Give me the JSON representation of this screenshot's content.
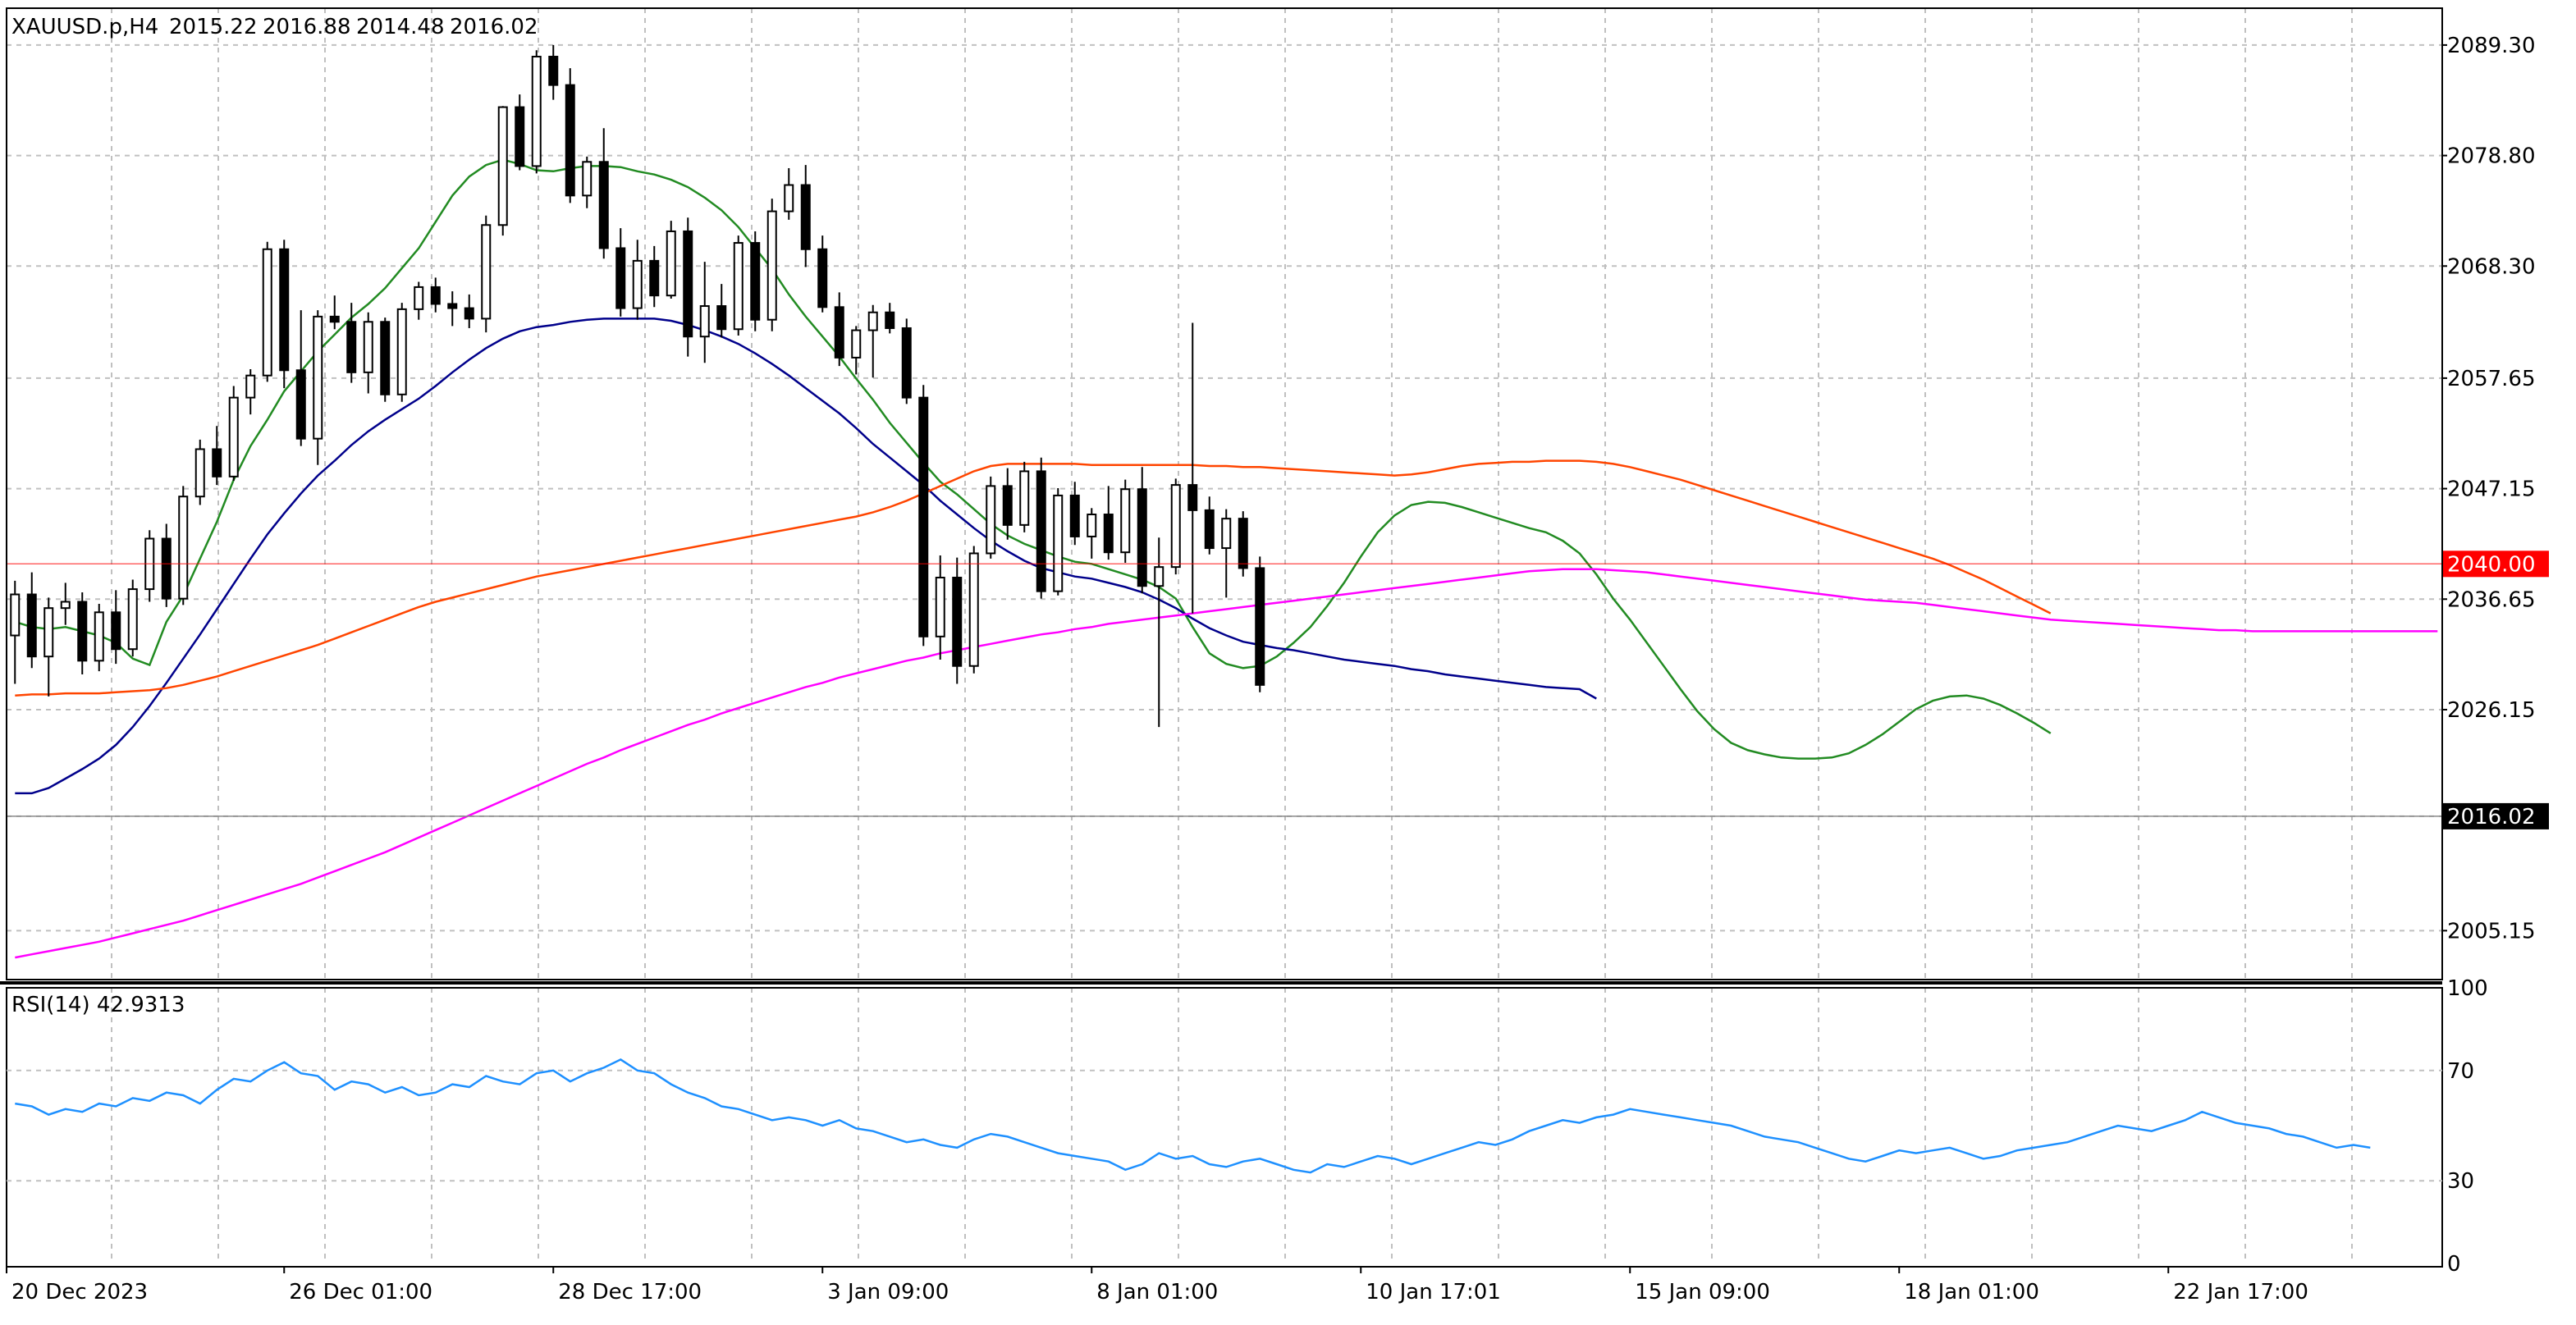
{
  "chart_data": {
    "type": "candlestick",
    "title": "XAUUSD.p,H4",
    "ohlc_header": {
      "open": "2015.22",
      "high": "2016.88",
      "low": "2014.48",
      "close": "2016.02"
    },
    "price_axis": {
      "ticks": [
        "2089.30",
        "2078.80",
        "2068.30",
        "2057.65",
        "2047.15",
        "2036.65",
        "2026.15",
        "2016.02",
        "2005.15"
      ],
      "ylim": [
        2000.5,
        2092.8
      ]
    },
    "current_price": {
      "label": "2016.02",
      "value": 2016.02,
      "color": "#000000"
    },
    "level_line": {
      "label": "2040.00",
      "value": 2040.0,
      "color": "#ff0000"
    },
    "time_axis": {
      "labels": [
        "20 Dec 2023",
        "26 Dec 01:00",
        "28 Dec 17:00",
        "3 Jan 09:00",
        "8 Jan 01:00",
        "10 Jan 17:01",
        "15 Jan 09:00",
        "18 Jan 01:00",
        "22 Jan 17:00"
      ],
      "label_bar_index": [
        0,
        16,
        32,
        48,
        64,
        80,
        96,
        112,
        128
      ]
    },
    "colors": {
      "bull": "#ffffff",
      "bear": "#000000",
      "grid": "#c0c0c0",
      "ma_fast": "#228b22",
      "ma_mid": "#00008b",
      "ma_slow": "#ff4500",
      "ma_long": "#ff00ff",
      "rsi": "#1e90ff",
      "level": "#ff0000"
    },
    "series": [
      {
        "values": [
          2034.5,
          2034.0,
          2033.8,
          2034.0,
          2033.6,
          2033.2,
          2032.5,
          2031.0,
          2030.4,
          2034.5,
          2037.0,
          2040.5,
          2044.0,
          2048.0,
          2051.2,
          2053.7,
          2056.4,
          2058.3,
          2060.2,
          2061.8,
          2063.4,
          2064.7,
          2066.2,
          2068.1,
          2070.0,
          2072.5,
          2075.0,
          2076.8,
          2077.9,
          2078.4,
          2078.0,
          2077.4,
          2077.3,
          2077.6,
          2077.8,
          2077.8,
          2077.7,
          2077.3,
          2077.0,
          2076.5,
          2075.8,
          2074.8,
          2073.6,
          2072.0,
          2070.0,
          2068.0,
          2065.6,
          2063.5,
          2061.6,
          2059.7,
          2057.6,
          2055.6,
          2053.4,
          2051.5,
          2049.6,
          2047.8,
          2046.6,
          2045.2,
          2043.8,
          2042.7,
          2041.9,
          2041.3,
          2040.7,
          2040.2,
          2040.0,
          2039.5,
          2039.0,
          2038.5,
          2037.8,
          2036.7,
          2034.0,
          2031.5,
          2030.5,
          2030.1,
          2030.3,
          2031.2,
          2032.5,
          2034.0,
          2036.0,
          2038.2,
          2040.7,
          2043.0,
          2044.6,
          2045.6,
          2045.9,
          2045.8,
          2045.4,
          2044.9,
          2044.4,
          2043.9,
          2043.4,
          2043.0,
          2042.2,
          2041.0,
          2039.0,
          2036.7,
          2034.7,
          2032.5,
          2030.3,
          2028.1,
          2026.0,
          2024.3,
          2023.0,
          2022.3,
          2021.9,
          2021.6,
          2021.5,
          2021.5,
          2021.6,
          2022.0,
          2022.8,
          2023.8,
          2025.0,
          2026.2,
          2027.0,
          2027.4,
          2027.5,
          2027.2,
          2026.6,
          2025.8,
          2024.9,
          2023.9
        ]
      },
      {
        "values": [
          2018.2,
          2018.2,
          2018.7,
          2019.6,
          2020.5,
          2021.5,
          2022.8,
          2024.5,
          2026.5,
          2028.7,
          2031.0,
          2033.3,
          2035.7,
          2038.1,
          2040.5,
          2042.8,
          2044.8,
          2046.7,
          2048.4,
          2049.8,
          2051.3,
          2052.6,
          2053.7,
          2054.7,
          2055.7,
          2056.9,
          2058.2,
          2059.4,
          2060.5,
          2061.4,
          2062.1,
          2062.5,
          2062.7,
          2063.0,
          2063.2,
          2063.3,
          2063.3,
          2063.3,
          2063.3,
          2063.1,
          2062.7,
          2062.2,
          2061.6,
          2060.9,
          2060.0,
          2059.0,
          2057.9,
          2056.7,
          2055.5,
          2054.3,
          2052.9,
          2051.4,
          2050.1,
          2048.8,
          2047.5,
          2046.0,
          2044.7,
          2043.4,
          2042.2,
          2041.2,
          2040.3,
          2039.6,
          2039.2,
          2038.8,
          2038.6,
          2038.2,
          2037.8,
          2037.3,
          2036.6,
          2035.8,
          2034.8,
          2033.9,
          2033.2,
          2032.6,
          2032.3,
          2032.0,
          2031.8,
          2031.5,
          2031.2,
          2030.9,
          2030.7,
          2030.5,
          2030.3,
          2030.0,
          2029.8,
          2029.5,
          2029.3,
          2029.1,
          2028.9,
          2028.7,
          2028.5,
          2028.3,
          2028.2,
          2028.1,
          2027.2
        ]
      },
      {
        "values": [
          2027.5,
          2027.6,
          2027.6,
          2027.7,
          2027.7,
          2027.7,
          2027.8,
          2027.9,
          2028.0,
          2028.2,
          2028.5,
          2028.9,
          2029.3,
          2029.8,
          2030.3,
          2030.8,
          2031.3,
          2031.8,
          2032.3,
          2032.9,
          2033.5,
          2034.1,
          2034.7,
          2035.3,
          2035.9,
          2036.4,
          2036.8,
          2037.2,
          2037.6,
          2038.0,
          2038.4,
          2038.8,
          2039.1,
          2039.4,
          2039.7,
          2040.0,
          2040.3,
          2040.6,
          2040.9,
          2041.2,
          2041.5,
          2041.8,
          2042.1,
          2042.4,
          2042.7,
          2043.0,
          2043.3,
          2043.6,
          2043.9,
          2044.2,
          2044.5,
          2044.9,
          2045.4,
          2046.0,
          2046.7,
          2047.4,
          2048.1,
          2048.8,
          2049.3,
          2049.5,
          2049.5,
          2049.5,
          2049.5,
          2049.5,
          2049.4,
          2049.4,
          2049.4,
          2049.4,
          2049.4,
          2049.4,
          2049.4,
          2049.3,
          2049.3,
          2049.2,
          2049.2,
          2049.1,
          2049.0,
          2048.9,
          2048.8,
          2048.7,
          2048.6,
          2048.5,
          2048.4,
          2048.5,
          2048.7,
          2049.0,
          2049.3,
          2049.5,
          2049.6,
          2049.7,
          2049.7,
          2049.8,
          2049.8,
          2049.8,
          2049.7,
          2049.5,
          2049.2,
          2048.8,
          2048.4,
          2048.0,
          2047.5,
          2047.0,
          2046.5,
          2046.0,
          2045.5,
          2045.0,
          2044.5,
          2044.0,
          2043.5,
          2043.0,
          2042.5,
          2042.0,
          2041.5,
          2041.0,
          2040.5,
          2039.9,
          2039.2,
          2038.5,
          2037.7,
          2036.9,
          2036.1,
          2035.3
        ]
      },
      {
        "values": [
          2002.6,
          2002.9,
          2003.2,
          2003.5,
          2003.8,
          2004.1,
          2004.5,
          2004.9,
          2005.3,
          2005.7,
          2006.1,
          2006.6,
          2007.1,
          2007.6,
          2008.1,
          2008.6,
          2009.1,
          2009.6,
          2010.2,
          2010.8,
          2011.4,
          2012.0,
          2012.6,
          2013.3,
          2014.0,
          2014.7,
          2015.4,
          2016.1,
          2016.8,
          2017.5,
          2018.2,
          2018.9,
          2019.6,
          2020.3,
          2021.0,
          2021.6,
          2022.3,
          2022.9,
          2023.5,
          2024.1,
          2024.7,
          2025.2,
          2025.8,
          2026.3,
          2026.8,
          2027.3,
          2027.8,
          2028.3,
          2028.7,
          2029.2,
          2029.6,
          2030.0,
          2030.4,
          2030.8,
          2031.1,
          2031.5,
          2031.8,
          2032.1,
          2032.4,
          2032.7,
          2033.0,
          2033.3,
          2033.5,
          2033.8,
          2034.0,
          2034.3,
          2034.5,
          2034.7,
          2034.9,
          2035.1,
          2035.3,
          2035.5,
          2035.7,
          2035.9,
          2036.1,
          2036.3,
          2036.5,
          2036.7,
          2036.9,
          2037.1,
          2037.3,
          2037.5,
          2037.7,
          2037.9,
          2038.1,
          2038.3,
          2038.5,
          2038.7,
          2038.9,
          2039.1,
          2039.3,
          2039.4,
          2039.5,
          2039.5,
          2039.5,
          2039.4,
          2039.3,
          2039.2,
          2039.0,
          2038.8,
          2038.6,
          2038.4,
          2038.2,
          2038.0,
          2037.8,
          2037.6,
          2037.4,
          2037.2,
          2037.0,
          2036.8,
          2036.6,
          2036.5,
          2036.4,
          2036.3,
          2036.1,
          2035.9,
          2035.7,
          2035.5,
          2035.3,
          2035.1,
          2034.9,
          2034.7,
          2034.6,
          2034.5,
          2034.4,
          2034.3,
          2034.2,
          2034.1,
          2034.0,
          2033.9,
          2033.8,
          2033.7,
          2033.7,
          2033.6,
          2033.6,
          2033.6,
          2033.6,
          2033.6,
          2033.6,
          2033.6,
          2033.6,
          2033.6,
          2033.6,
          2033.6,
          2033.6
        ]
      },
      {
        "values": [
          58,
          57,
          54,
          56,
          55,
          58,
          57,
          60,
          59,
          62,
          61,
          58,
          63,
          67,
          66,
          70,
          73,
          69,
          68,
          63,
          66,
          65,
          62,
          64,
          61,
          62,
          65,
          64,
          68,
          66,
          65,
          69,
          70,
          66,
          69,
          71,
          74,
          70,
          69,
          65,
          62,
          60,
          57,
          56,
          54,
          52,
          53,
          52,
          50,
          52,
          49,
          48,
          46,
          44,
          45,
          43,
          42,
          45,
          47,
          46,
          44,
          42,
          40,
          39,
          38,
          37,
          34,
          36,
          40,
          38,
          39,
          36,
          35,
          37,
          38,
          36,
          34,
          33,
          36,
          35,
          37,
          39,
          38,
          36,
          38,
          40,
          42,
          44,
          43,
          45,
          48,
          50,
          52,
          51,
          53,
          54,
          56,
          55,
          54,
          53,
          52,
          51,
          50,
          48,
          46,
          45,
          44,
          42,
          40,
          38,
          37,
          39,
          41,
          40,
          41,
          42,
          40,
          38,
          39,
          41,
          42,
          43,
          44,
          46,
          48,
          50,
          49,
          48,
          50,
          52,
          55,
          53,
          51,
          50,
          49,
          47,
          46,
          44,
          42,
          43,
          42
        ]
      }
    ],
    "candles": [
      [
        2033.2,
        2038.4,
        2028.6,
        2037.1
      ],
      [
        2037.1,
        2039.2,
        2030.1,
        2031.2
      ],
      [
        2031.2,
        2036.8,
        2027.4,
        2035.8
      ],
      [
        2035.8,
        2038.2,
        2034.2,
        2036.4
      ],
      [
        2036.4,
        2037.3,
        2029.5,
        2030.8
      ],
      [
        2030.8,
        2036.2,
        2029.8,
        2035.4
      ],
      [
        2035.4,
        2037.5,
        2030.5,
        2031.9
      ],
      [
        2031.9,
        2038.5,
        2031.2,
        2037.6
      ],
      [
        2037.6,
        2043.2,
        2036.4,
        2042.4
      ],
      [
        2042.4,
        2043.8,
        2035.9,
        2036.7
      ],
      [
        2036.7,
        2047.4,
        2036.1,
        2046.4
      ],
      [
        2046.4,
        2051.8,
        2045.6,
        2050.9
      ],
      [
        2050.9,
        2053.1,
        2047.5,
        2048.3
      ],
      [
        2048.3,
        2056.9,
        2047.9,
        2055.8
      ],
      [
        2055.8,
        2058.5,
        2054.2,
        2057.9
      ],
      [
        2057.9,
        2070.6,
        2057.3,
        2069.9
      ],
      [
        2069.9,
        2070.8,
        2056.7,
        2058.4
      ],
      [
        2058.4,
        2064.1,
        2051.2,
        2051.9
      ],
      [
        2051.9,
        2064.1,
        2049.4,
        2063.5
      ],
      [
        2063.5,
        2065.5,
        2062.3,
        2063.0
      ],
      [
        2063.0,
        2064.8,
        2057.2,
        2058.2
      ],
      [
        2058.2,
        2063.9,
        2056.2,
        2063.0
      ],
      [
        2063.0,
        2063.4,
        2055.4,
        2056.1
      ],
      [
        2056.1,
        2064.8,
        2055.4,
        2064.2
      ],
      [
        2064.2,
        2066.8,
        2063.2,
        2066.3
      ],
      [
        2066.3,
        2067.2,
        2063.9,
        2064.7
      ],
      [
        2064.7,
        2065.9,
        2062.6,
        2064.3
      ],
      [
        2064.3,
        2065.6,
        2062.4,
        2063.3
      ],
      [
        2063.3,
        2073.1,
        2062.0,
        2072.2
      ],
      [
        2072.2,
        2083.5,
        2071.2,
        2083.4
      ],
      [
        2083.4,
        2084.6,
        2077.4,
        2077.8
      ],
      [
        2077.8,
        2088.8,
        2077.1,
        2088.2
      ],
      [
        2088.2,
        2089.3,
        2084.1,
        2085.5
      ],
      [
        2085.5,
        2087.1,
        2074.3,
        2075.0
      ],
      [
        2075.0,
        2078.7,
        2073.8,
        2078.2
      ],
      [
        2078.2,
        2081.4,
        2069.0,
        2070.0
      ],
      [
        2070.0,
        2071.9,
        2063.5,
        2064.3
      ],
      [
        2064.3,
        2070.8,
        2063.2,
        2068.8
      ],
      [
        2068.8,
        2070.2,
        2064.4,
        2065.5
      ],
      [
        2065.5,
        2072.6,
        2065.2,
        2071.6
      ],
      [
        2071.6,
        2072.9,
        2059.7,
        2061.6
      ],
      [
        2061.6,
        2068.7,
        2059.1,
        2064.5
      ],
      [
        2064.5,
        2066.6,
        2061.5,
        2062.3
      ],
      [
        2062.3,
        2071.2,
        2061.7,
        2070.5
      ],
      [
        2070.5,
        2071.6,
        2062.1,
        2063.2
      ],
      [
        2063.2,
        2074.7,
        2062.1,
        2073.5
      ],
      [
        2073.5,
        2077.6,
        2072.7,
        2076.0
      ],
      [
        2076.0,
        2077.9,
        2068.2,
        2069.9
      ],
      [
        2069.9,
        2071.2,
        2063.9,
        2064.4
      ],
      [
        2064.4,
        2065.8,
        2058.8,
        2059.6
      ],
      [
        2059.6,
        2062.6,
        2058.0,
        2062.2
      ],
      [
        2062.2,
        2064.6,
        2057.7,
        2063.9
      ],
      [
        2063.9,
        2064.8,
        2061.9,
        2062.4
      ],
      [
        2062.4,
        2063.3,
        2055.2,
        2055.8
      ],
      [
        2055.8,
        2057.0,
        2032.2,
        2033.1
      ],
      [
        2033.1,
        2040.8,
        2030.9,
        2038.7
      ],
      [
        2038.7,
        2040.6,
        2028.6,
        2030.3
      ],
      [
        2030.3,
        2041.7,
        2029.6,
        2041.0
      ],
      [
        2041.0,
        2048.3,
        2040.5,
        2047.4
      ],
      [
        2047.4,
        2049.1,
        2042.3,
        2043.7
      ],
      [
        2043.7,
        2049.7,
        2043.0,
        2048.8
      ],
      [
        2048.8,
        2050.1,
        2036.7,
        2037.4
      ],
      [
        2037.4,
        2047.2,
        2037.0,
        2046.5
      ],
      [
        2046.5,
        2047.8,
        2041.8,
        2042.6
      ],
      [
        2042.6,
        2045.3,
        2040.5,
        2044.7
      ],
      [
        2044.7,
        2047.4,
        2040.4,
        2041.1
      ],
      [
        2041.1,
        2048.0,
        2040.1,
        2047.1
      ],
      [
        2047.1,
        2049.2,
        2037.2,
        2037.9
      ],
      [
        2037.9,
        2042.5,
        2024.5,
        2039.7
      ],
      [
        2039.7,
        2048.1,
        2039.0,
        2047.5
      ],
      [
        2047.5,
        2062.9,
        2035.3,
        2045.1
      ],
      [
        2045.1,
        2046.4,
        2040.9,
        2041.5
      ],
      [
        2041.5,
        2045.2,
        2036.8,
        2044.3
      ],
      [
        2044.3,
        2045.0,
        2038.8,
        2039.6
      ],
      [
        2039.6,
        2040.7,
        2027.8,
        2028.5
      ]
    ],
    "rsi": {
      "label": "RSI(14) 42.9313",
      "ticks": [
        "100",
        "70",
        "30",
        "0"
      ],
      "ylim": [
        0,
        100
      ]
    }
  }
}
